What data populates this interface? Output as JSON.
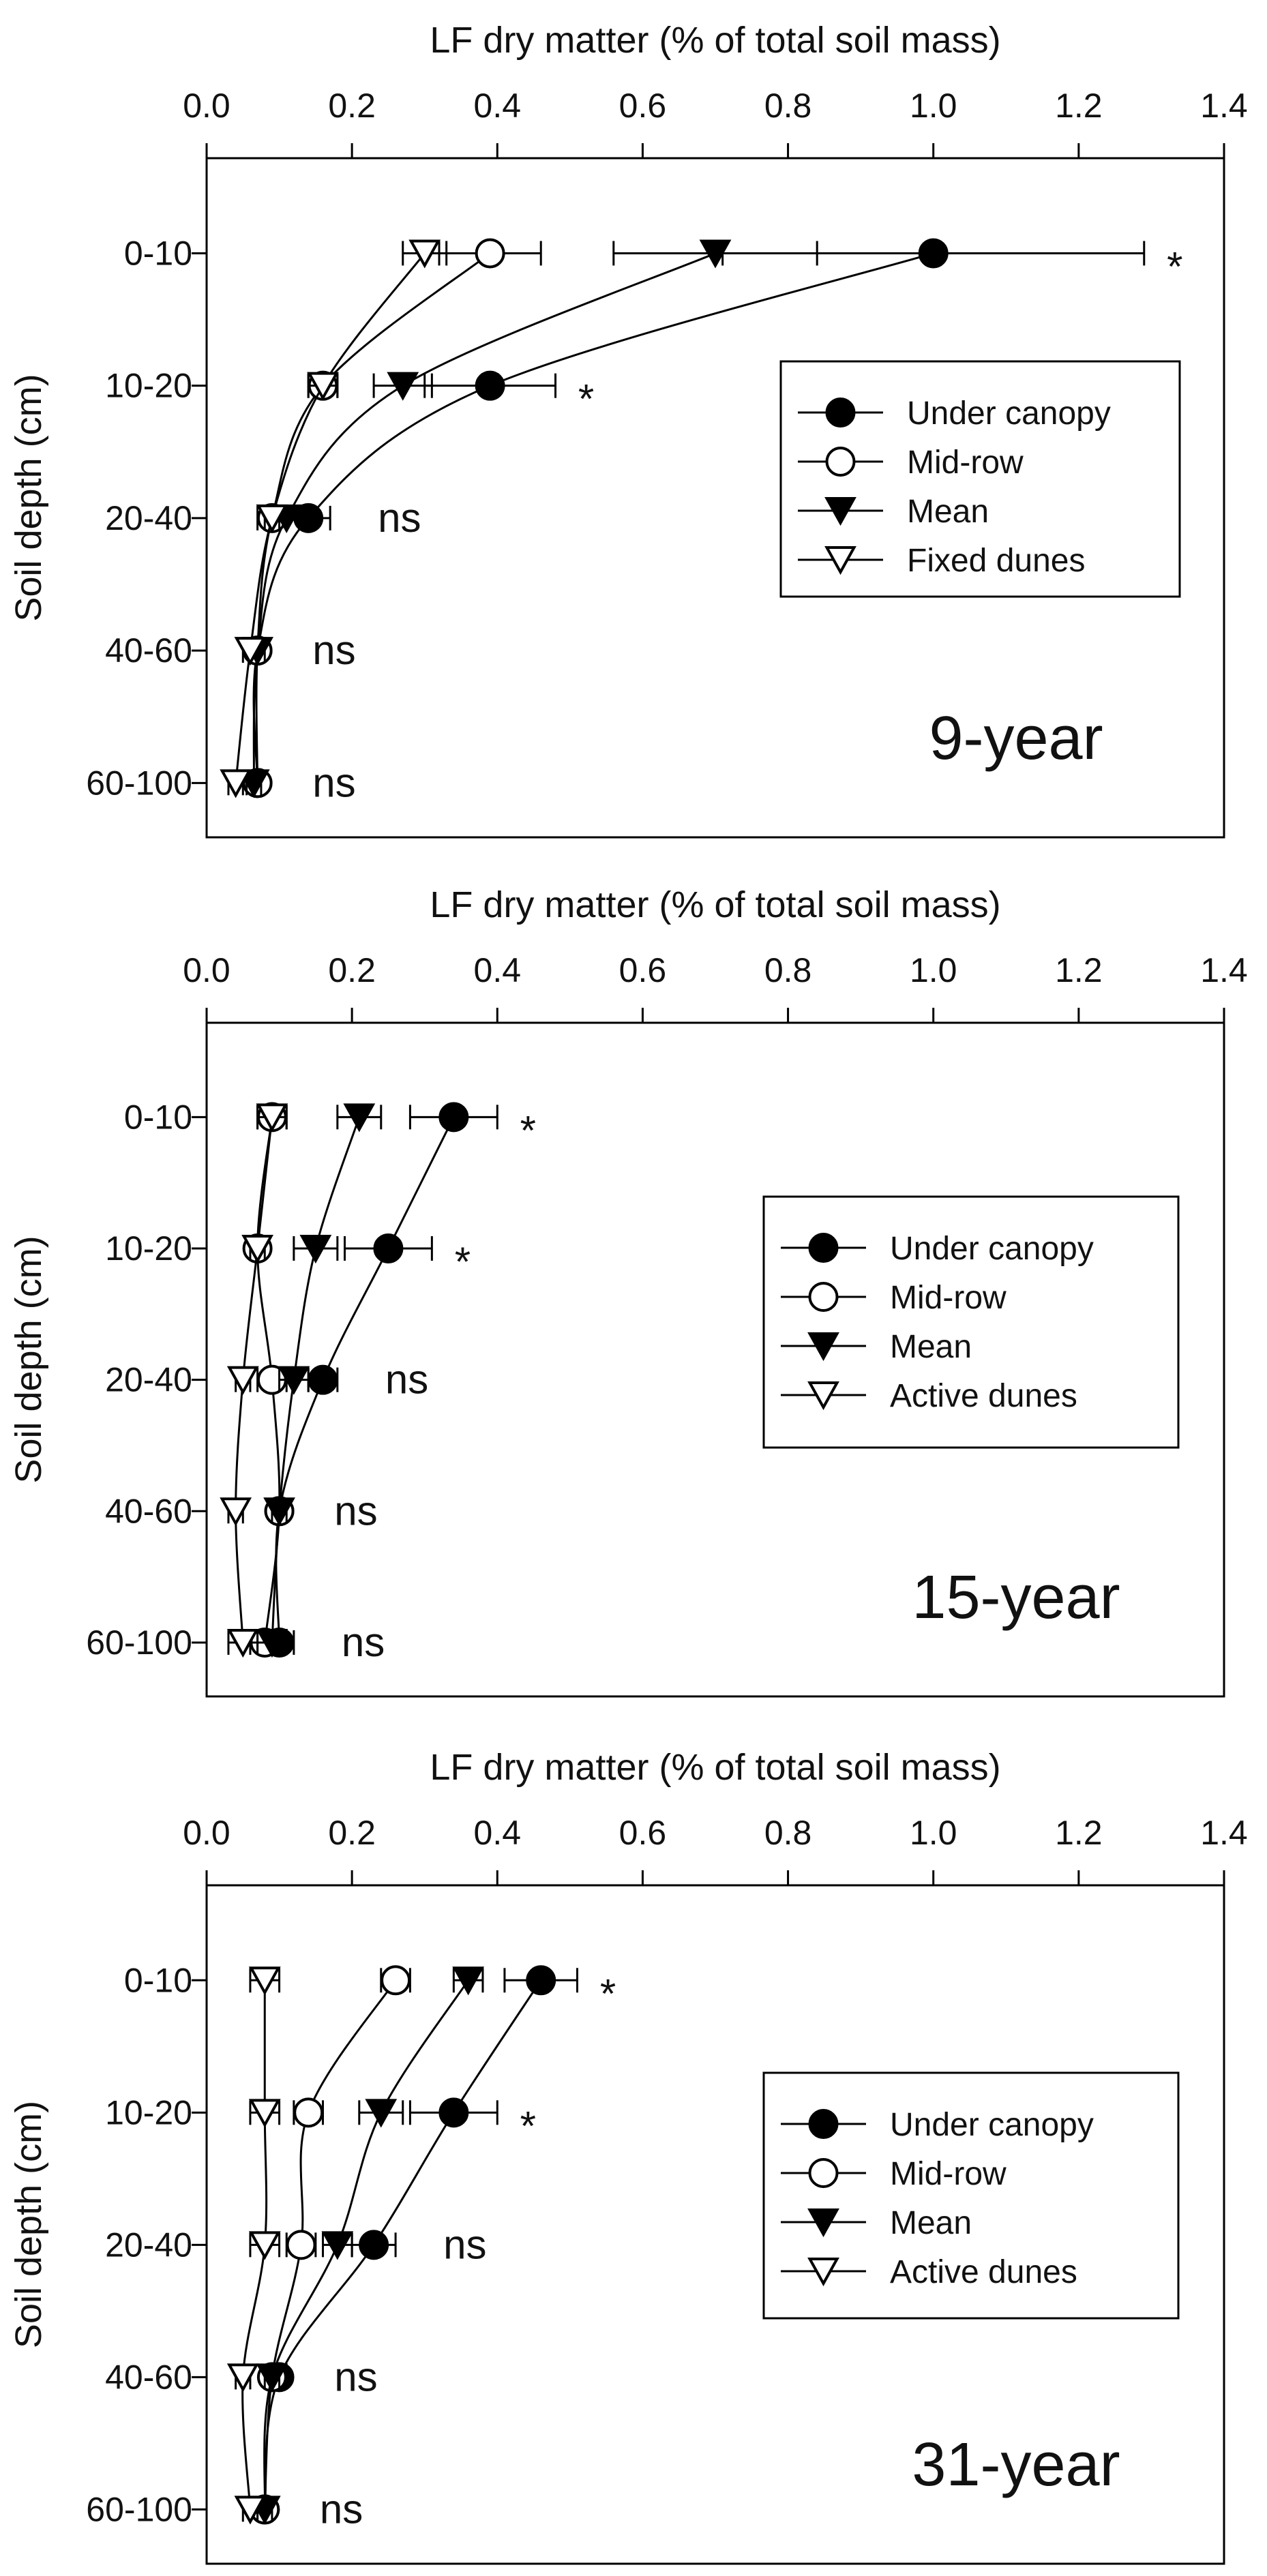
{
  "chart_data": [
    {
      "type": "line",
      "panel_label": "9-year",
      "xlabel": "LF dry matter (% of total soil mass)",
      "ylabel": "Soil depth (cm)",
      "xlim": [
        0,
        1.4
      ],
      "xticks": [
        "0.0",
        "0.2",
        "0.4",
        "0.6",
        "0.8",
        "1.0",
        "1.2",
        "1.4"
      ],
      "categories": [
        "0-10",
        "10-20",
        "20-40",
        "40-60",
        "60-100"
      ],
      "legend_position": "right-middle",
      "series": [
        {
          "name": "Under canopy",
          "marker": "filled-circle",
          "values": [
            1.0,
            0.39,
            0.14,
            0.07,
            0.07
          ],
          "errors": [
            0.29,
            0.09,
            0.03,
            0.01,
            0.01
          ]
        },
        {
          "name": "Mid-row",
          "marker": "open-circle",
          "values": [
            0.39,
            0.16,
            0.09,
            0.07,
            0.07
          ],
          "errors": [
            0.07,
            0.02,
            0.02,
            0.01,
            0.01
          ]
        },
        {
          "name": "Mean",
          "marker": "filled-triangle",
          "values": [
            0.7,
            0.27,
            0.11,
            0.07,
            0.065
          ],
          "errors": [
            0.14,
            0.04,
            0.02,
            0.01,
            0.01
          ]
        },
        {
          "name": "Fixed dunes",
          "marker": "open-triangle",
          "values": [
            0.3,
            0.16,
            0.09,
            0.06,
            0.04
          ],
          "errors": [
            0.03,
            0.02,
            0.01,
            0.01,
            0.01
          ]
        }
      ],
      "significance": [
        "*",
        "*",
        "ns",
        "ns",
        "ns"
      ]
    },
    {
      "type": "line",
      "panel_label": "15-year",
      "xlabel": "LF dry matter (% of total soil mass)",
      "ylabel": "Soil depth (cm)",
      "xlim": [
        0,
        1.4
      ],
      "xticks": [
        "0.0",
        "0.2",
        "0.4",
        "0.6",
        "0.8",
        "1.0",
        "1.2",
        "1.4"
      ],
      "categories": [
        "0-10",
        "10-20",
        "20-40",
        "40-60",
        "60-100"
      ],
      "legend_position": "right-middle",
      "series": [
        {
          "name": "Under canopy",
          "marker": "filled-circle",
          "values": [
            0.34,
            0.25,
            0.16,
            0.1,
            0.1
          ],
          "errors": [
            0.06,
            0.06,
            0.02,
            0.01,
            0.02
          ]
        },
        {
          "name": "Mid-row",
          "marker": "open-circle",
          "values": [
            0.09,
            0.07,
            0.09,
            0.1,
            0.08
          ],
          "errors": [
            0.02,
            0.01,
            0.02,
            0.01,
            0.02
          ]
        },
        {
          "name": "Mean",
          "marker": "filled-triangle",
          "values": [
            0.21,
            0.15,
            0.12,
            0.1,
            0.09
          ],
          "errors": [
            0.03,
            0.03,
            0.02,
            0.01,
            0.02
          ]
        },
        {
          "name": "Active dunes",
          "marker": "open-triangle",
          "values": [
            0.09,
            0.07,
            0.05,
            0.04,
            0.05
          ],
          "errors": [
            0.02,
            0.01,
            0.01,
            0.01,
            0.02
          ]
        }
      ],
      "significance": [
        "*",
        "*",
        "ns",
        "ns",
        "ns"
      ]
    },
    {
      "type": "line",
      "panel_label": "31-year",
      "xlabel": "LF dry matter (% of total soil mass)",
      "ylabel": "Soil depth (cm)",
      "xlim": [
        0,
        1.4
      ],
      "xticks": [
        "0.0",
        "0.2",
        "0.4",
        "0.6",
        "0.8",
        "1.0",
        "1.2",
        "1.4"
      ],
      "categories": [
        "0-10",
        "10-20",
        "20-40",
        "40-60",
        "60-100"
      ],
      "legend_position": "right-middle",
      "series": [
        {
          "name": "Under canopy",
          "marker": "filled-circle",
          "values": [
            0.46,
            0.34,
            0.23,
            0.1,
            0.08
          ],
          "errors": [
            0.05,
            0.06,
            0.03,
            0.01,
            0.01
          ]
        },
        {
          "name": "Mid-row",
          "marker": "open-circle",
          "values": [
            0.26,
            0.14,
            0.13,
            0.09,
            0.08
          ],
          "errors": [
            0.02,
            0.02,
            0.02,
            0.01,
            0.01
          ]
        },
        {
          "name": "Mean",
          "marker": "filled-triangle",
          "values": [
            0.36,
            0.24,
            0.18,
            0.09,
            0.08
          ],
          "errors": [
            0.02,
            0.03,
            0.02,
            0.01,
            0.01
          ]
        },
        {
          "name": "Active dunes",
          "marker": "open-triangle",
          "values": [
            0.08,
            0.08,
            0.08,
            0.05,
            0.06
          ],
          "errors": [
            0.02,
            0.02,
            0.02,
            0.01,
            0.01
          ]
        }
      ],
      "significance": [
        "*",
        "*",
        "ns",
        "ns",
        "ns"
      ]
    }
  ]
}
